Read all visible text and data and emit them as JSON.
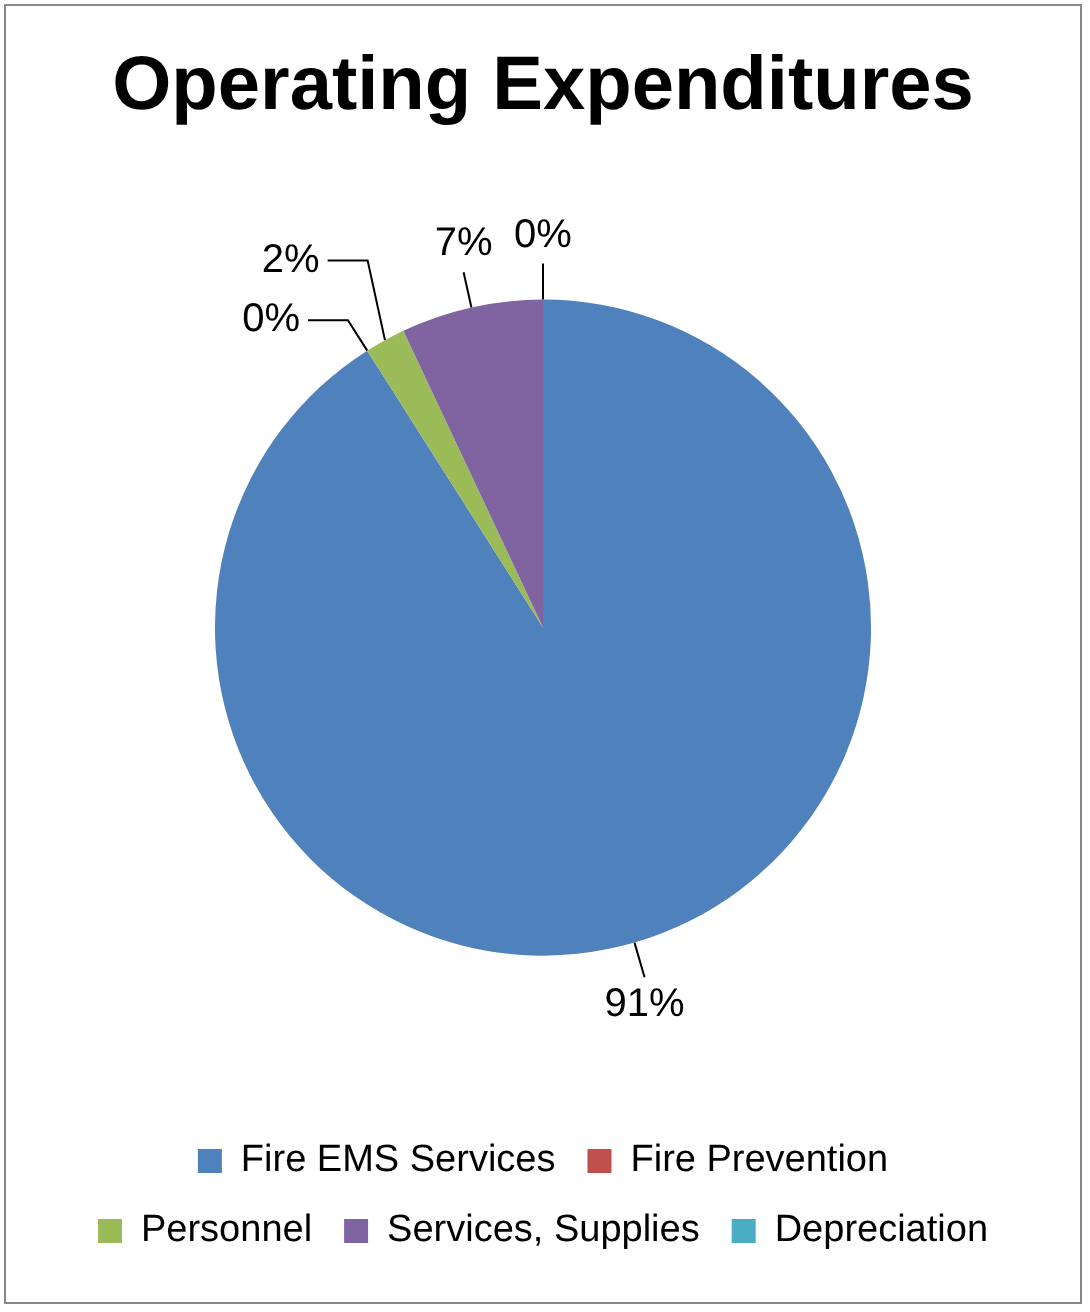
{
  "chart_data": {
    "type": "pie",
    "title": "Operating Expenditures",
    "categories": [
      "Fire EMS Services",
      "Fire Prevention",
      "Personnel",
      "Services, Supplies",
      "Depreciation"
    ],
    "values": [
      91,
      0,
      2,
      7,
      0
    ],
    "colors": [
      "#4f81bd",
      "#c0504d",
      "#9bbb59",
      "#8064a2",
      "#4bacc6"
    ],
    "value_labels": [
      "91%",
      "0%",
      "2%",
      "7%",
      "0%"
    ],
    "legend": "bottom"
  }
}
